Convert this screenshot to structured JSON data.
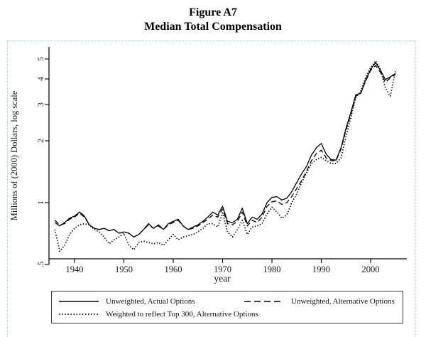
{
  "page": {
    "background": "#ffffff",
    "figure_border_color": "#a9c6c6",
    "line_color": "#000000"
  },
  "figure": {
    "title_line1": "Figure A7",
    "title_line2": "Median Total Compensation"
  },
  "chart_data": {
    "type": "line",
    "title": "Figure A7 - Median Total Compensation",
    "xlabel": "year",
    "ylabel": "Millions of (2000) Dollars, log scale",
    "y_scale": "log",
    "ylim": [
      0.5,
      5.2
    ],
    "xlim": [
      1936,
      2005
    ],
    "grid": false,
    "legend_position": "bottom",
    "x_ticks": [
      1940,
      1950,
      1960,
      1970,
      1980,
      1990,
      2000
    ],
    "y_ticks": [
      {
        "v": 5,
        "label": "5"
      },
      {
        "v": 4,
        "label": "4"
      },
      {
        "v": 3,
        "label": "3"
      },
      {
        "v": 2,
        "label": "2"
      },
      {
        "v": 1,
        "label": "1"
      },
      {
        "v": 0.5,
        "label": ".5"
      }
    ],
    "years_start": 1936,
    "series": [
      {
        "name": "Unweighted, Actual Options",
        "style": "solid",
        "values": [
          0.8,
          0.77,
          0.8,
          0.84,
          0.86,
          0.9,
          0.86,
          0.78,
          0.75,
          0.74,
          0.75,
          0.73,
          0.74,
          0.71,
          0.72,
          0.71,
          0.68,
          0.7,
          0.74,
          0.79,
          0.75,
          0.78,
          0.74,
          0.79,
          0.81,
          0.83,
          0.77,
          0.74,
          0.76,
          0.78,
          0.81,
          0.85,
          0.9,
          0.87,
          0.96,
          0.81,
          0.8,
          0.83,
          0.94,
          0.79,
          0.85,
          0.83,
          0.88,
          1.0,
          1.06,
          1.07,
          1.03,
          1.05,
          1.13,
          1.25,
          1.38,
          1.5,
          1.7,
          1.85,
          1.94,
          1.72,
          1.62,
          1.61,
          1.85,
          2.3,
          2.75,
          3.35,
          3.4,
          3.95,
          4.45,
          4.8,
          4.4,
          3.97,
          4.1,
          4.25
        ]
      },
      {
        "name": "Unweighted, Alternative Options",
        "style": "dashed",
        "values": [
          0.82,
          0.78,
          0.79,
          0.83,
          0.85,
          0.89,
          0.85,
          0.78,
          0.75,
          0.74,
          0.75,
          0.73,
          0.74,
          0.71,
          0.72,
          0.71,
          0.68,
          0.7,
          0.74,
          0.78,
          0.75,
          0.77,
          0.74,
          0.78,
          0.8,
          0.82,
          0.77,
          0.74,
          0.75,
          0.77,
          0.8,
          0.83,
          0.87,
          0.85,
          0.93,
          0.79,
          0.78,
          0.81,
          0.9,
          0.77,
          0.82,
          0.8,
          0.85,
          0.96,
          1.01,
          1.02,
          0.98,
          1.0,
          1.07,
          1.17,
          1.28,
          1.42,
          1.6,
          1.73,
          1.8,
          1.65,
          1.6,
          1.6,
          1.82,
          2.25,
          2.7,
          3.3,
          3.42,
          3.9,
          4.4,
          4.65,
          4.3,
          3.85,
          4.05,
          4.2
        ]
      },
      {
        "name": "Weighted to reflect Top 300, Alternative Options",
        "style": "dotted",
        "values": [
          0.74,
          0.58,
          0.62,
          0.7,
          0.75,
          0.78,
          0.79,
          0.78,
          0.74,
          0.72,
          0.68,
          0.63,
          0.66,
          0.68,
          0.71,
          0.62,
          0.59,
          0.64,
          0.65,
          0.64,
          0.63,
          0.64,
          0.62,
          0.66,
          0.7,
          0.66,
          0.68,
          0.69,
          0.7,
          0.72,
          0.75,
          0.79,
          0.79,
          0.76,
          0.89,
          0.72,
          0.68,
          0.74,
          0.82,
          0.7,
          0.76,
          0.77,
          0.79,
          0.88,
          0.95,
          0.9,
          0.84,
          0.87,
          1.0,
          1.1,
          1.25,
          1.4,
          1.55,
          1.62,
          1.66,
          1.6,
          1.55,
          1.55,
          1.65,
          2.1,
          2.6,
          3.25,
          3.5,
          4.05,
          4.55,
          4.9,
          4.45,
          3.6,
          3.3,
          4.35
        ]
      }
    ]
  }
}
